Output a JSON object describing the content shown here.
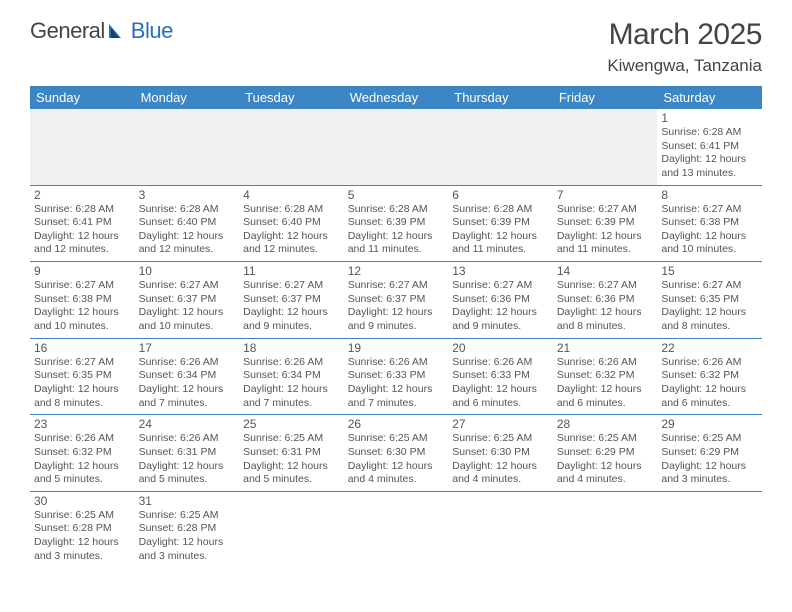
{
  "logo": {
    "text1": "General",
    "text2": "Blue"
  },
  "title": "March 2025",
  "location": "Kiwengwa, Tanzania",
  "colors": {
    "header_bg": "#3d86c6",
    "header_text": "#ffffff",
    "border": "#3d86c6",
    "empty_bg": "#f0f0f0",
    "text": "#555555",
    "logo_blue": "#2d6fb5"
  },
  "weekdays": [
    "Sunday",
    "Monday",
    "Tuesday",
    "Wednesday",
    "Thursday",
    "Friday",
    "Saturday"
  ],
  "days": {
    "1": {
      "sunrise": "6:28 AM",
      "sunset": "6:41 PM",
      "daylight": "12 hours and 13 minutes."
    },
    "2": {
      "sunrise": "6:28 AM",
      "sunset": "6:41 PM",
      "daylight": "12 hours and 12 minutes."
    },
    "3": {
      "sunrise": "6:28 AM",
      "sunset": "6:40 PM",
      "daylight": "12 hours and 12 minutes."
    },
    "4": {
      "sunrise": "6:28 AM",
      "sunset": "6:40 PM",
      "daylight": "12 hours and 12 minutes."
    },
    "5": {
      "sunrise": "6:28 AM",
      "sunset": "6:39 PM",
      "daylight": "12 hours and 11 minutes."
    },
    "6": {
      "sunrise": "6:28 AM",
      "sunset": "6:39 PM",
      "daylight": "12 hours and 11 minutes."
    },
    "7": {
      "sunrise": "6:27 AM",
      "sunset": "6:39 PM",
      "daylight": "12 hours and 11 minutes."
    },
    "8": {
      "sunrise": "6:27 AM",
      "sunset": "6:38 PM",
      "daylight": "12 hours and 10 minutes."
    },
    "9": {
      "sunrise": "6:27 AM",
      "sunset": "6:38 PM",
      "daylight": "12 hours and 10 minutes."
    },
    "10": {
      "sunrise": "6:27 AM",
      "sunset": "6:37 PM",
      "daylight": "12 hours and 10 minutes."
    },
    "11": {
      "sunrise": "6:27 AM",
      "sunset": "6:37 PM",
      "daylight": "12 hours and 9 minutes."
    },
    "12": {
      "sunrise": "6:27 AM",
      "sunset": "6:37 PM",
      "daylight": "12 hours and 9 minutes."
    },
    "13": {
      "sunrise": "6:27 AM",
      "sunset": "6:36 PM",
      "daylight": "12 hours and 9 minutes."
    },
    "14": {
      "sunrise": "6:27 AM",
      "sunset": "6:36 PM",
      "daylight": "12 hours and 8 minutes."
    },
    "15": {
      "sunrise": "6:27 AM",
      "sunset": "6:35 PM",
      "daylight": "12 hours and 8 minutes."
    },
    "16": {
      "sunrise": "6:27 AM",
      "sunset": "6:35 PM",
      "daylight": "12 hours and 8 minutes."
    },
    "17": {
      "sunrise": "6:26 AM",
      "sunset": "6:34 PM",
      "daylight": "12 hours and 7 minutes."
    },
    "18": {
      "sunrise": "6:26 AM",
      "sunset": "6:34 PM",
      "daylight": "12 hours and 7 minutes."
    },
    "19": {
      "sunrise": "6:26 AM",
      "sunset": "6:33 PM",
      "daylight": "12 hours and 7 minutes."
    },
    "20": {
      "sunrise": "6:26 AM",
      "sunset": "6:33 PM",
      "daylight": "12 hours and 6 minutes."
    },
    "21": {
      "sunrise": "6:26 AM",
      "sunset": "6:32 PM",
      "daylight": "12 hours and 6 minutes."
    },
    "22": {
      "sunrise": "6:26 AM",
      "sunset": "6:32 PM",
      "daylight": "12 hours and 6 minutes."
    },
    "23": {
      "sunrise": "6:26 AM",
      "sunset": "6:32 PM",
      "daylight": "12 hours and 5 minutes."
    },
    "24": {
      "sunrise": "6:26 AM",
      "sunset": "6:31 PM",
      "daylight": "12 hours and 5 minutes."
    },
    "25": {
      "sunrise": "6:25 AM",
      "sunset": "6:31 PM",
      "daylight": "12 hours and 5 minutes."
    },
    "26": {
      "sunrise": "6:25 AM",
      "sunset": "6:30 PM",
      "daylight": "12 hours and 4 minutes."
    },
    "27": {
      "sunrise": "6:25 AM",
      "sunset": "6:30 PM",
      "daylight": "12 hours and 4 minutes."
    },
    "28": {
      "sunrise": "6:25 AM",
      "sunset": "6:29 PM",
      "daylight": "12 hours and 4 minutes."
    },
    "29": {
      "sunrise": "6:25 AM",
      "sunset": "6:29 PM",
      "daylight": "12 hours and 3 minutes."
    },
    "30": {
      "sunrise": "6:25 AM",
      "sunset": "6:28 PM",
      "daylight": "12 hours and 3 minutes."
    },
    "31": {
      "sunrise": "6:25 AM",
      "sunset": "6:28 PM",
      "daylight": "12 hours and 3 minutes."
    }
  },
  "labels": {
    "sunrise": "Sunrise:",
    "sunset": "Sunset:",
    "daylight": "Daylight:"
  },
  "grid": [
    [
      0,
      0,
      0,
      0,
      0,
      0,
      1
    ],
    [
      2,
      3,
      4,
      5,
      6,
      7,
      8
    ],
    [
      9,
      10,
      11,
      12,
      13,
      14,
      15
    ],
    [
      16,
      17,
      18,
      19,
      20,
      21,
      22
    ],
    [
      23,
      24,
      25,
      26,
      27,
      28,
      29
    ],
    [
      30,
      31,
      0,
      0,
      0,
      0,
      0
    ]
  ]
}
